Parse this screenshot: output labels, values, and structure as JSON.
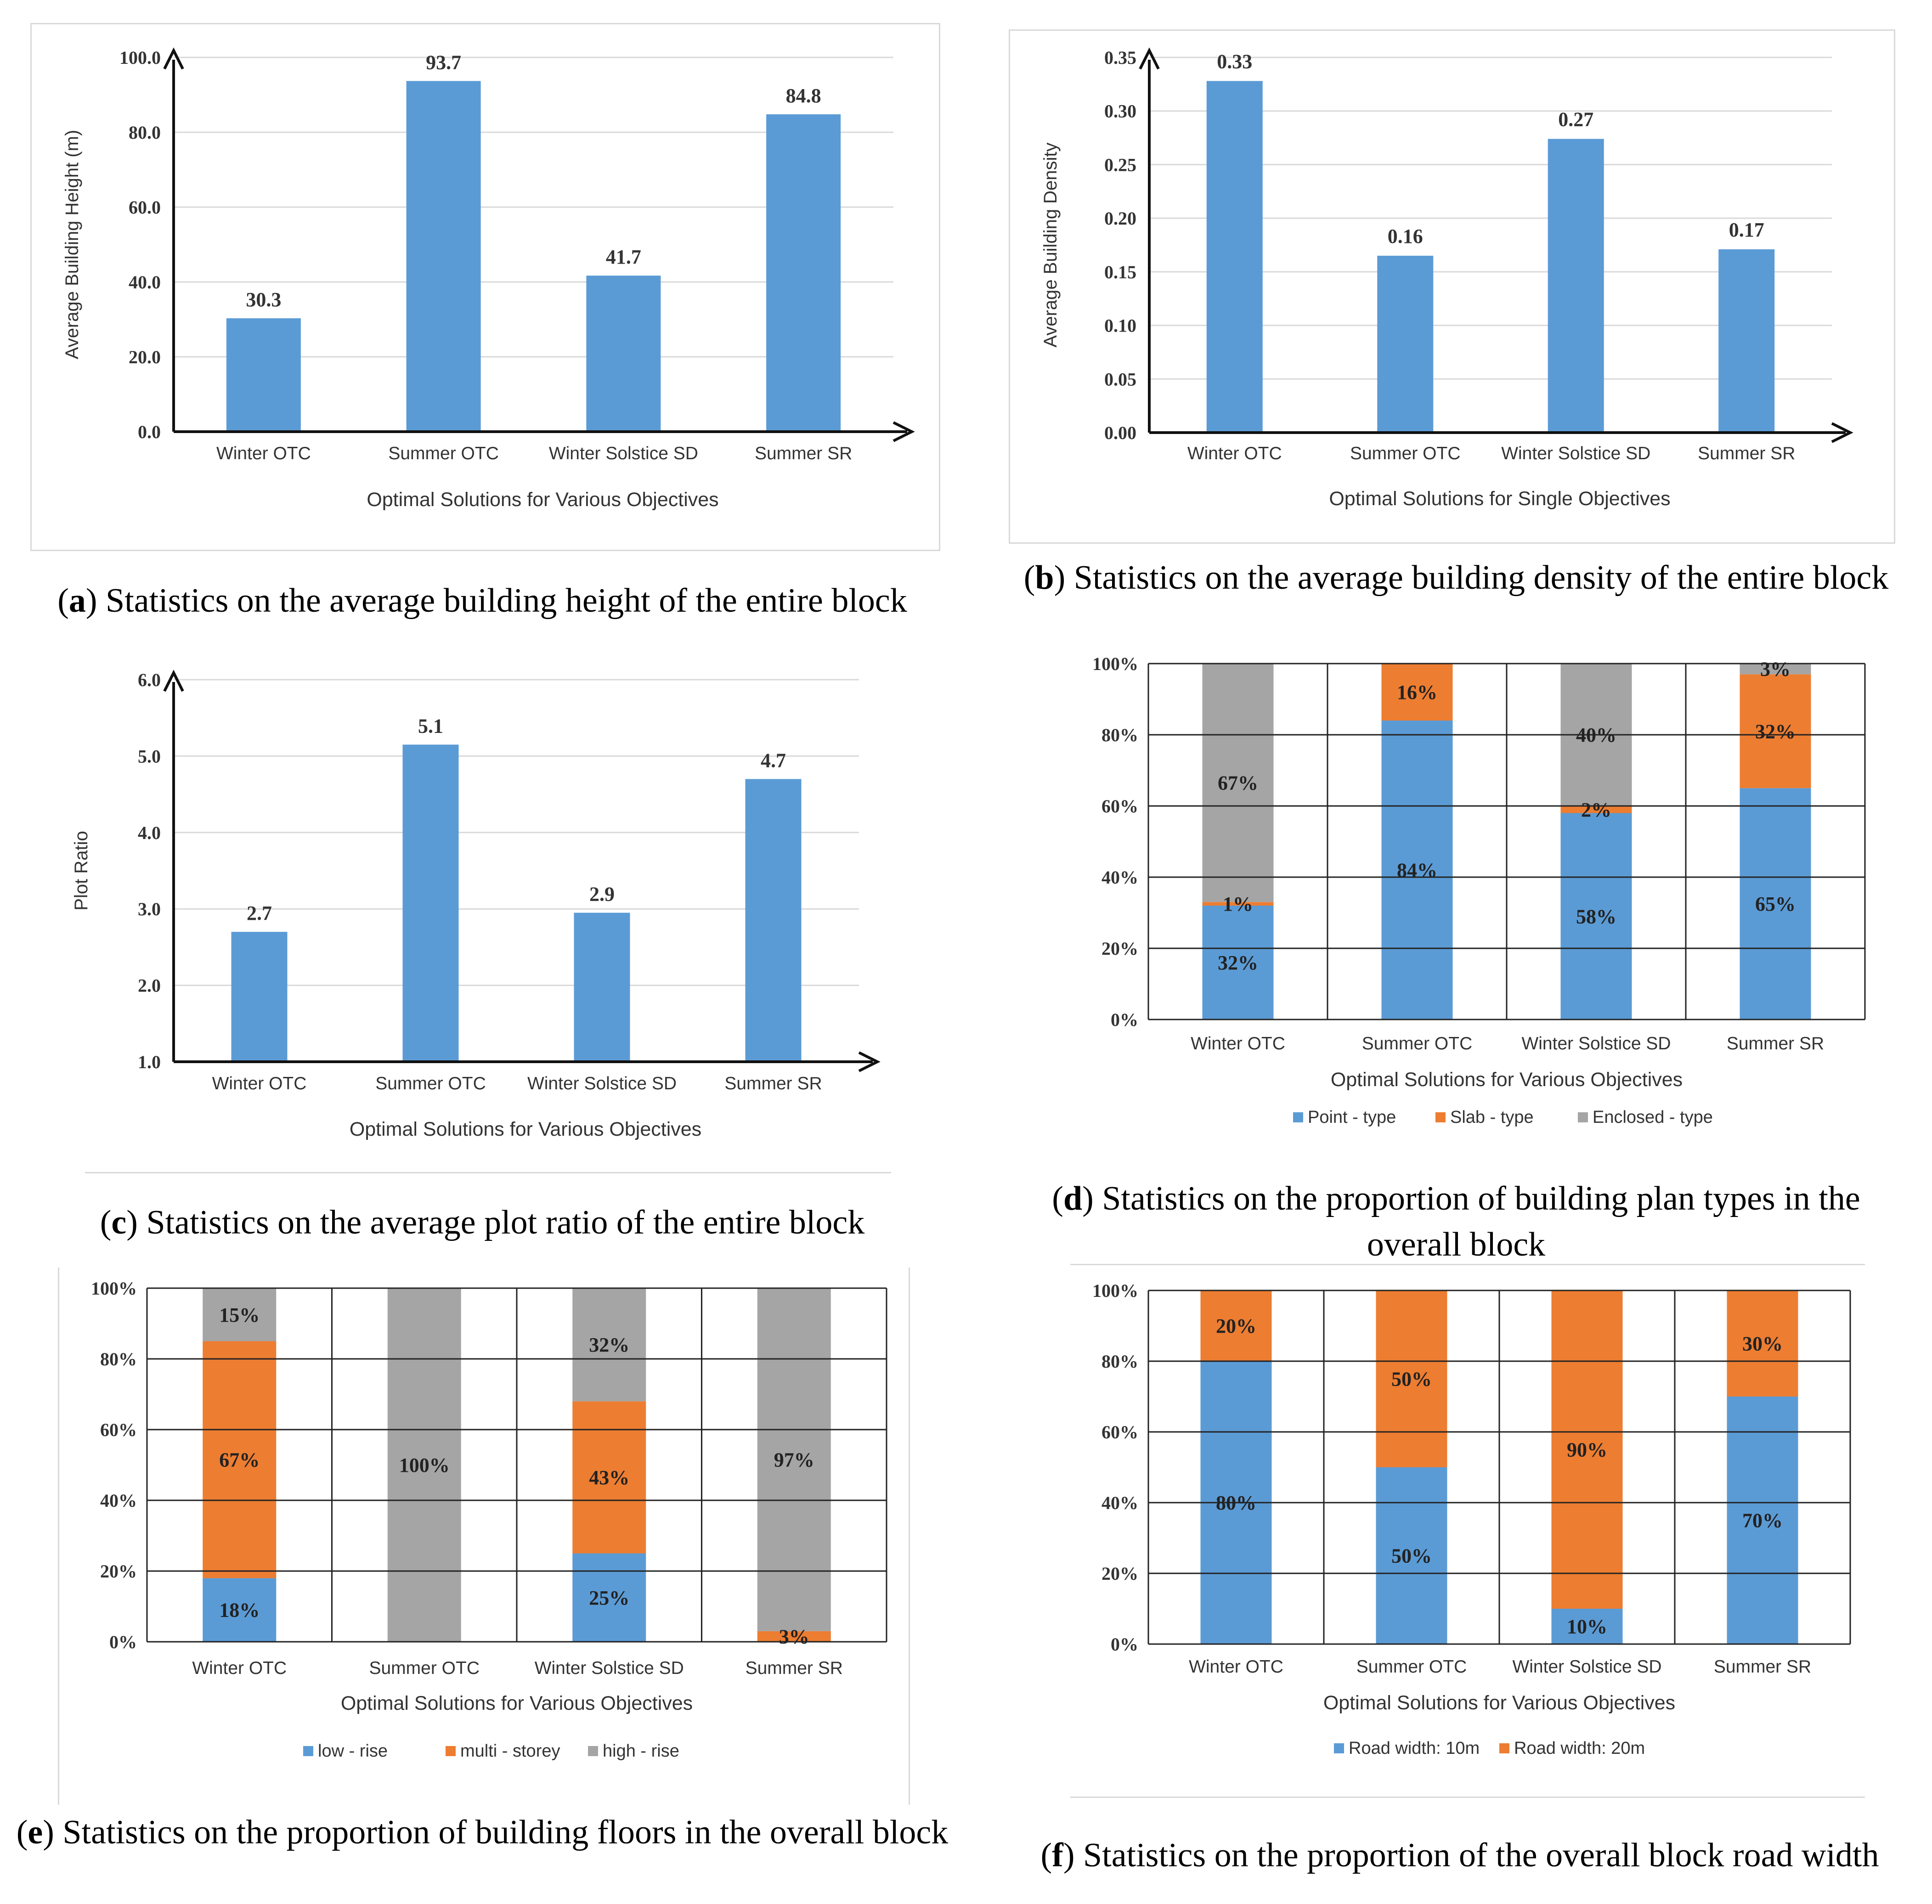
{
  "colors": {
    "blue": "#5b9bd5",
    "orange": "#ed7d31",
    "gray": "#a5a5a5"
  },
  "captions": [
    {
      "letter": "a",
      "text": "Statistics on the average building height of the entire block"
    },
    {
      "letter": "b",
      "text": "Statistics on the average building density of the entire block"
    },
    {
      "letter": "c",
      "text": "Statistics on the average plot ratio of the entire block"
    },
    {
      "letter": "d",
      "text": "Statistics on the proportion of building plan types in the overall block"
    },
    {
      "letter": "e",
      "text": "Statistics on the proportion of building floors in the overall block"
    },
    {
      "letter": "f",
      "text": "Statistics on the proportion of the overall block road width"
    }
  ],
  "chart_data": [
    {
      "type": "bar",
      "title": "",
      "categories": [
        "Winter OTC",
        "Summer OTC",
        "Winter Solstice SD",
        "Summer SR"
      ],
      "values": [
        30.3,
        93.7,
        41.7,
        84.8
      ],
      "value_labels": [
        "30.3",
        "93.7",
        "41.7",
        "84.8"
      ],
      "xlabel": "Optimal Solutions for Various Objectives",
      "ylabel": "Average Building Height (m)",
      "ylim": [
        0,
        100
      ],
      "yticks": [
        "0.0",
        "20.0",
        "40.0",
        "60.0",
        "80.0",
        "100.0"
      ],
      "grid": true
    },
    {
      "type": "bar",
      "title": "",
      "categories": [
        "Winter OTC",
        "Summer OTC",
        "Winter Solstice SD",
        "Summer SR"
      ],
      "values": [
        0.328,
        0.165,
        0.274,
        0.171
      ],
      "value_labels": [
        "0.33",
        "0.16",
        "0.27",
        "0.17"
      ],
      "xlabel": "Optimal Solutions for Single Objectives",
      "ylabel": "Average Building Density",
      "ylim": [
        0,
        0.35
      ],
      "yticks": [
        "0.00",
        "0.05",
        "0.10",
        "0.15",
        "0.20",
        "0.25",
        "0.30",
        "0.35"
      ],
      "grid": true
    },
    {
      "type": "bar",
      "title": "",
      "categories": [
        "Winter OTC",
        "Summer OTC",
        "Winter Solstice SD",
        "Summer SR"
      ],
      "values": [
        2.7,
        5.15,
        2.95,
        4.7
      ],
      "value_labels": [
        "2.7",
        "5.1",
        "2.9",
        "4.7"
      ],
      "xlabel": "Optimal Solutions for Various Objectives",
      "ylabel": "Plot Ratio",
      "ylim": [
        1,
        6
      ],
      "yticks": [
        "1.0",
        "2.0",
        "3.0",
        "4.0",
        "5.0",
        "6.0"
      ],
      "grid": true
    },
    {
      "type": "stacked-bar",
      "title": "",
      "categories": [
        "Winter OTC",
        "Summer OTC",
        "Winter Solstice SD",
        "Summer SR"
      ],
      "series": [
        {
          "name": "Point - type",
          "color": "#5b9bd5",
          "values": [
            32,
            84,
            58,
            65
          ],
          "labels": [
            "32%",
            "84%",
            "58%",
            "65%"
          ]
        },
        {
          "name": "Slab - type",
          "color": "#ed7d31",
          "values": [
            1,
            16,
            2,
            32
          ],
          "labels": [
            "1%",
            "16%",
            "2%",
            "32%"
          ]
        },
        {
          "name": "Enclosed - type",
          "color": "#a5a5a5",
          "values": [
            67,
            0,
            40,
            3
          ],
          "labels": [
            "67%",
            "",
            "40%",
            "3%"
          ]
        }
      ],
      "xlabel": "Optimal Solutions for Various Objectives",
      "ylim": [
        0,
        100
      ],
      "yticks": [
        "0%",
        "20%",
        "40%",
        "60%",
        "80%",
        "100%"
      ],
      "legend": "bottom"
    },
    {
      "type": "stacked-bar",
      "title": "",
      "categories": [
        "Winter OTC",
        "Summer OTC",
        "Winter Solstice SD",
        "Summer SR"
      ],
      "series": [
        {
          "name": "low - rise",
          "color": "#5b9bd5",
          "values": [
            18,
            0,
            25,
            0
          ],
          "labels": [
            "18%",
            "",
            "25%",
            ""
          ]
        },
        {
          "name": "multi - storey",
          "color": "#ed7d31",
          "values": [
            67,
            0,
            43,
            3
          ],
          "labels": [
            "67%",
            "",
            "43%",
            "3%"
          ]
        },
        {
          "name": "high - rise",
          "color": "#a5a5a5",
          "values": [
            15,
            100,
            32,
            97
          ],
          "labels": [
            "15%",
            "100%",
            "32%",
            "97%"
          ]
        }
      ],
      "xlabel": "Optimal Solutions for Various Objectives",
      "ylim": [
        0,
        100
      ],
      "yticks": [
        "0%",
        "20%",
        "40%",
        "60%",
        "80%",
        "100%"
      ],
      "legend": "bottom"
    },
    {
      "type": "stacked-bar",
      "title": "",
      "categories": [
        "Winter OTC",
        "Summer OTC",
        "Winter Solstice SD",
        "Summer SR"
      ],
      "series": [
        {
          "name": "Road width: 10m",
          "color": "#5b9bd5",
          "values": [
            80,
            50,
            10,
            70
          ],
          "labels": [
            "80%",
            "50%",
            "10%",
            "70%"
          ]
        },
        {
          "name": "Road width: 20m",
          "color": "#ed7d31",
          "values": [
            20,
            50,
            90,
            30
          ],
          "labels": [
            "20%",
            "50%",
            "90%",
            "30%"
          ]
        }
      ],
      "xlabel": "Optimal Solutions for Various Objectives",
      "ylim": [
        0,
        100
      ],
      "yticks": [
        "0%",
        "20%",
        "40%",
        "60%",
        "80%",
        "100%"
      ],
      "legend": "bottom"
    }
  ]
}
